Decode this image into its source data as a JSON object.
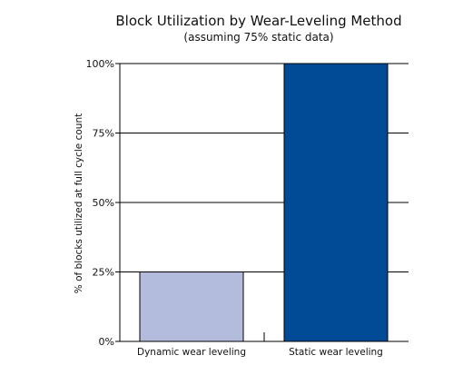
{
  "chart_data": {
    "type": "bar",
    "title": "Block Utilization by Wear-Leveling Method",
    "subtitle": "(assuming 75% static data)",
    "xlabel": "",
    "ylabel": "% of blocks utilized at full cycle count",
    "categories": [
      "Dynamic wear leveling",
      "Static wear leveling"
    ],
    "values": [
      25,
      100
    ],
    "ylim": [
      0,
      100
    ],
    "yticks": [
      0,
      25,
      50,
      75,
      100
    ],
    "ytick_labels": [
      "0%",
      "25%",
      "50%",
      "75%",
      "100%"
    ],
    "bar_colors": [
      "#b3bcdc",
      "#004a96"
    ],
    "grid": true,
    "legend": "none"
  }
}
